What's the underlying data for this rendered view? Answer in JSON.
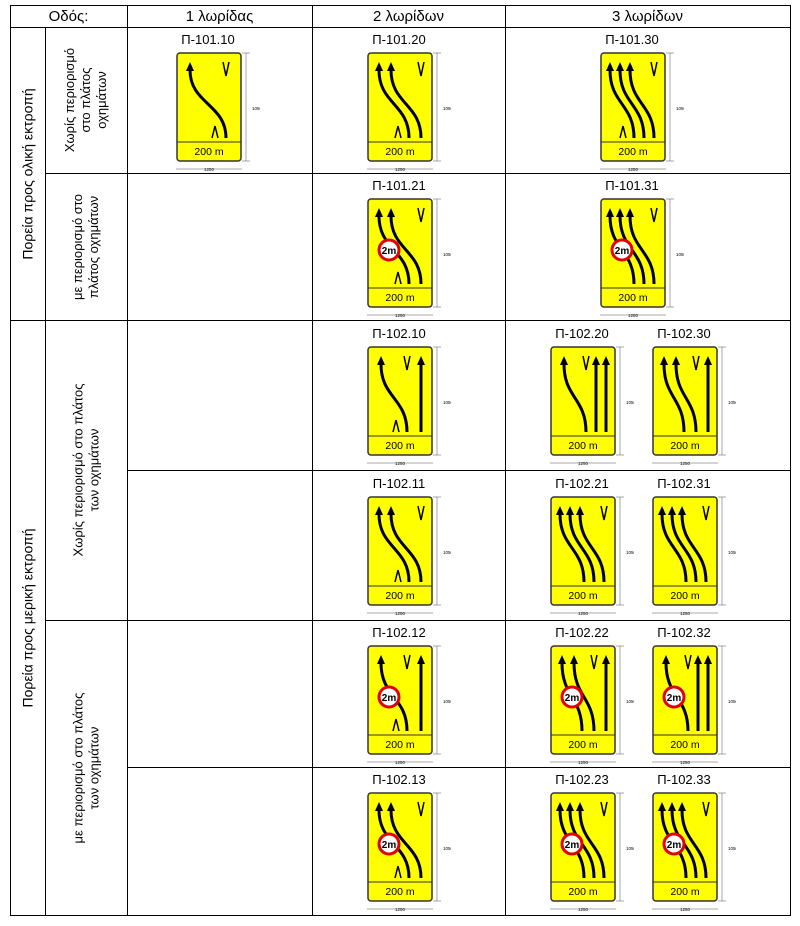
{
  "header": {
    "road": "Οδός:",
    "col1": "1 λωρίδας",
    "col2": "2 λωρίδων",
    "col3": "3 λωρίδων"
  },
  "groups": {
    "total": "Πορεία προς ολική εκτροπή",
    "partial": "Πορεία προς μερική  εκτροπή"
  },
  "subgroups": {
    "a": "Χωρίς  περιορισμό|στο πλάτος|οχημάτων",
    "b": "με περιορισμό στο|πλάτος οχημάτων",
    "c": "Χωρίς περιορισμό στο πλάτος|των οχημάτων",
    "d": "με περιορισμό στο πλάτος|των οχημάτων"
  },
  "sign_common": {
    "distance": "200 m",
    "height_dim": "1050",
    "width_dim": "1250",
    "restriction": "2m",
    "color": "#ffff00"
  },
  "signs": [
    {
      "code": "Π-101.10",
      "restriction": false
    },
    {
      "code": "Π-101.20",
      "restriction": false
    },
    {
      "code": "Π-101.30",
      "restriction": false
    },
    {
      "code": "Π-101.21",
      "restriction": true
    },
    {
      "code": "Π-101.31",
      "restriction": true
    },
    {
      "code": "Π-102.10",
      "restriction": false
    },
    {
      "code": "Π-102.20",
      "restriction": false
    },
    {
      "code": "Π-102.30",
      "restriction": false
    },
    {
      "code": "Π-102.11",
      "restriction": false
    },
    {
      "code": "Π-102.21",
      "restriction": false
    },
    {
      "code": "Π-102.31",
      "restriction": false
    },
    {
      "code": "Π-102.12",
      "restriction": true
    },
    {
      "code": "Π-102.22",
      "restriction": true
    },
    {
      "code": "Π-102.32",
      "restriction": true
    },
    {
      "code": "Π-102.13",
      "restriction": true
    },
    {
      "code": "Π-102.23",
      "restriction": true
    },
    {
      "code": "Π-102.33",
      "restriction": true
    }
  ]
}
